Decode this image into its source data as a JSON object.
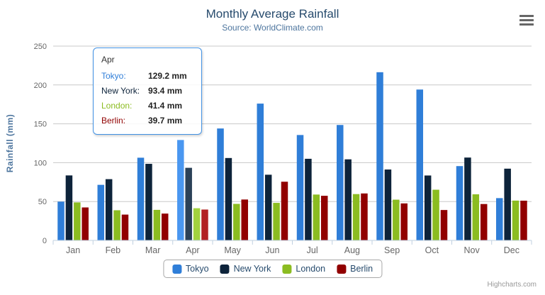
{
  "header": {
    "title": "Monthly Average Rainfall",
    "subtitle": "Source: WorldClimate.com"
  },
  "chart_data": {
    "type": "bar",
    "title": "Monthly Average Rainfall",
    "subtitle": "Source: WorldClimate.com",
    "xlabel": "",
    "ylabel": "Rainfall (mm)",
    "ylim": [
      0,
      250
    ],
    "yticks": [
      0,
      50,
      100,
      150,
      200,
      250
    ],
    "grid": true,
    "legend_position": "bottom",
    "categories": [
      "Jan",
      "Feb",
      "Mar",
      "Apr",
      "May",
      "Jun",
      "Jul",
      "Aug",
      "Sep",
      "Oct",
      "Nov",
      "Dec"
    ],
    "hovered_category": "Apr",
    "hovered_index": 3,
    "series": [
      {
        "name": "Tokyo",
        "color": "#2f7ed8",
        "hover_color": "#4a97f0",
        "values": [
          49.9,
          71.5,
          106.4,
          129.2,
          144.0,
          176.0,
          135.6,
          148.5,
          216.4,
          194.1,
          95.6,
          54.4
        ]
      },
      {
        "name": "New York",
        "color": "#0d233a",
        "hover_color": "#2b4158",
        "values": [
          83.6,
          78.8,
          98.5,
          93.4,
          106.0,
          84.5,
          105.0,
          104.3,
          91.2,
          83.5,
          106.6,
          92.3
        ]
      },
      {
        "name": "London",
        "color": "#8bbc21",
        "hover_color": "#a2d23e",
        "values": [
          48.9,
          38.8,
          39.3,
          41.4,
          47.0,
          48.3,
          59.0,
          59.6,
          52.4,
          65.2,
          59.3,
          51.2
        ]
      },
      {
        "name": "Berlin",
        "color": "#910000",
        "hover_color": "#b22222",
        "values": [
          42.4,
          33.2,
          34.5,
          39.7,
          52.6,
          75.5,
          57.4,
          60.4,
          47.6,
          39.1,
          46.8,
          51.1
        ]
      }
    ],
    "axis_colors": {
      "grid_line": "#c8c8c8",
      "axis_line": "#c0d0e0",
      "tick": "#c0d0e0",
      "label": "#666666",
      "axis_title": "#4d759e"
    }
  },
  "tooltip": {
    "title": "Apr",
    "border_color": "#4292e4",
    "rows": [
      {
        "label": "Tokyo:",
        "value": "129.2 mm",
        "color": "#2f7ed8"
      },
      {
        "label": "New York:",
        "value": "93.4 mm",
        "color": "#0d233a"
      },
      {
        "label": "London:",
        "value": "41.4 mm",
        "color": "#8bbc21"
      },
      {
        "label": "Berlin:",
        "value": "39.7 mm",
        "color": "#910000"
      }
    ]
  },
  "legend": {
    "items": [
      {
        "label": "Tokyo",
        "color": "#2f7ed8"
      },
      {
        "label": "New York",
        "color": "#0d233a"
      },
      {
        "label": "London",
        "color": "#8bbc21"
      },
      {
        "label": "Berlin",
        "color": "#910000"
      }
    ]
  },
  "menu_icon": "hamburger-menu-icon",
  "credits": {
    "label": "Highcharts.com"
  }
}
